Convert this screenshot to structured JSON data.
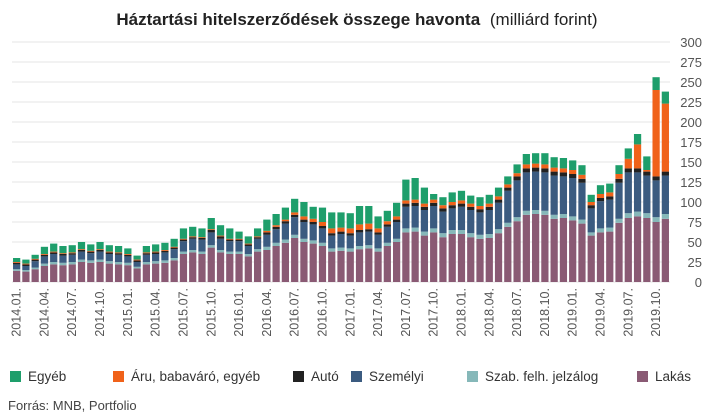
{
  "title_bold": "Háztartási hitelszerződések összege havonta",
  "title_rest": "(milliárd forint)",
  "source": "Forrás: MNB, Portfolio",
  "colors": {
    "Lakás": "#8a5a74",
    "Szab. felh. jelzálog": "#86b8b9",
    "Személyi": "#3b5b80",
    "Autó": "#222222",
    "Áru, babaváró, egyéb": "#f0621a",
    "Egyéb": "#1e9e6b",
    "grid": "#e6e6e6",
    "axis_text": "#555555"
  },
  "chart_data": {
    "type": "bar",
    "stacked": true,
    "ylim": [
      0,
      300
    ],
    "yticks": [
      0,
      25,
      50,
      75,
      100,
      125,
      150,
      175,
      200,
      225,
      250,
      275,
      300
    ],
    "y_axis_position": "right",
    "grid": true,
    "legend_position": "bottom",
    "xtick_labels": [
      "2014.01.",
      "2014.04.",
      "2014.07.",
      "2014.10.",
      "2015.01.",
      "2015.04.",
      "2015.07.",
      "2015.10.",
      "2016.01.",
      "2016.04.",
      "2016.07.",
      "2016.10.",
      "2017.01.",
      "2017.04.",
      "2017.07.",
      "2017.10.",
      "2018.01.",
      "2018.04.",
      "2018.07.",
      "2018.10.",
      "2019.01.",
      "2019.04.",
      "2019.07.",
      "2019.10."
    ],
    "xtick_every": 3,
    "categories": [
      "2014.01.",
      "2014.02.",
      "2014.03.",
      "2014.04.",
      "2014.05.",
      "2014.06.",
      "2014.07.",
      "2014.08.",
      "2014.09.",
      "2014.10.",
      "2014.11.",
      "2014.12.",
      "2015.01.",
      "2015.02.",
      "2015.03.",
      "2015.04.",
      "2015.05.",
      "2015.06.",
      "2015.07.",
      "2015.08.",
      "2015.09.",
      "2015.10.",
      "2015.11.",
      "2015.12.",
      "2016.01.",
      "2016.02.",
      "2016.03.",
      "2016.04.",
      "2016.05.",
      "2016.06.",
      "2016.07.",
      "2016.08.",
      "2016.09.",
      "2016.10.",
      "2016.11.",
      "2016.12.",
      "2017.01.",
      "2017.02.",
      "2017.03.",
      "2017.04.",
      "2017.05.",
      "2017.06.",
      "2017.07.",
      "2017.08.",
      "2017.09.",
      "2017.10.",
      "2017.11.",
      "2017.12.",
      "2018.01.",
      "2018.02.",
      "2018.03.",
      "2018.04.",
      "2018.05.",
      "2018.06.",
      "2018.07.",
      "2018.08.",
      "2018.09.",
      "2018.10.",
      "2018.11.",
      "2018.12.",
      "2019.01.",
      "2019.02.",
      "2019.03.",
      "2019.04.",
      "2019.05.",
      "2019.06.",
      "2019.07.",
      "2019.08.",
      "2019.09.",
      "2019.10.",
      "2019.11."
    ],
    "series": [
      {
        "name": "Lakás",
        "values": [
          14,
          13,
          16,
          20,
          22,
          21,
          22,
          25,
          24,
          25,
          23,
          22,
          21,
          17,
          22,
          23,
          24,
          27,
          35,
          37,
          35,
          43,
          37,
          35,
          35,
          32,
          38,
          40,
          45,
          49,
          55,
          50,
          48,
          45,
          38,
          39,
          38,
          41,
          42,
          38,
          45,
          50,
          62,
          63,
          58,
          62,
          56,
          60,
          60,
          56,
          54,
          55,
          61,
          69,
          76,
          84,
          85,
          84,
          79,
          80,
          77,
          73,
          58,
          62,
          63,
          74,
          80,
          82,
          80,
          75,
          79
        ]
      },
      {
        "name": "Szab. felh. jelzálog",
        "values": [
          2,
          2,
          2,
          3,
          3,
          3,
          3,
          3,
          3,
          3,
          3,
          3,
          3,
          2,
          3,
          3,
          3,
          3,
          3,
          3,
          3,
          3,
          3,
          3,
          3,
          3,
          3,
          4,
          4,
          4,
          4,
          4,
          4,
          4,
          4,
          4,
          4,
          4,
          4,
          4,
          4,
          4,
          5,
          5,
          5,
          5,
          5,
          5,
          5,
          5,
          5,
          5,
          5,
          5,
          5,
          5,
          5,
          5,
          5,
          5,
          5,
          5,
          4,
          5,
          5,
          5,
          6,
          6,
          6,
          6,
          6
        ]
      },
      {
        "name": "Személyi",
        "values": [
          6,
          5,
          8,
          9,
          10,
          9,
          9,
          10,
          9,
          10,
          9,
          9,
          8,
          6,
          9,
          9,
          10,
          11,
          13,
          14,
          15,
          16,
          14,
          13,
          13,
          10,
          13,
          15,
          17,
          20,
          22,
          21,
          20,
          18,
          16,
          17,
          16,
          17,
          17,
          17,
          20,
          21,
          27,
          27,
          27,
          28,
          27,
          27,
          29,
          29,
          28,
          30,
          33,
          40,
          46,
          48,
          48,
          48,
          49,
          47,
          48,
          46,
          30,
          34,
          35,
          45,
          51,
          49,
          47,
          46,
          48
        ]
      },
      {
        "name": "Autó",
        "values": [
          2,
          2,
          2,
          2,
          2,
          2,
          2,
          2,
          2,
          2,
          2,
          2,
          2,
          2,
          2,
          2,
          2,
          2,
          2,
          2,
          2,
          3,
          3,
          2,
          2,
          2,
          2,
          3,
          3,
          3,
          3,
          3,
          3,
          3,
          3,
          3,
          3,
          3,
          3,
          3,
          3,
          3,
          4,
          4,
          4,
          4,
          4,
          4,
          4,
          4,
          4,
          4,
          4,
          4,
          5,
          5,
          5,
          5,
          5,
          5,
          5,
          5,
          4,
          4,
          4,
          5,
          5,
          5,
          5,
          5,
          5
        ]
      },
      {
        "name": "Áru, babaváró, egyéb",
        "values": [
          1,
          1,
          1,
          1,
          1,
          1,
          1,
          1,
          1,
          1,
          1,
          1,
          1,
          1,
          1,
          1,
          1,
          1,
          1,
          1,
          1,
          1,
          1,
          1,
          1,
          1,
          1,
          2,
          2,
          2,
          3,
          4,
          4,
          5,
          6,
          5,
          6,
          7,
          7,
          5,
          4,
          4,
          4,
          4,
          4,
          4,
          4,
          4,
          4,
          4,
          4,
          4,
          4,
          4,
          4,
          5,
          5,
          5,
          5,
          5,
          5,
          5,
          4,
          5,
          5,
          6,
          12,
          30,
          2,
          108,
          85
        ]
      },
      {
        "name": "Egyéb",
        "values": [
          5,
          5,
          5,
          9,
          10,
          9,
          9,
          9,
          8,
          9,
          8,
          8,
          7,
          5,
          8,
          9,
          9,
          10,
          13,
          12,
          11,
          14,
          13,
          13,
          9,
          9,
          10,
          14,
          14,
          15,
          17,
          18,
          15,
          18,
          20,
          19,
          19,
          23,
          22,
          15,
          13,
          17,
          26,
          27,
          20,
          7,
          10,
          12,
          12,
          10,
          11,
          11,
          11,
          10,
          11,
          13,
          13,
          14,
          13,
          13,
          12,
          12,
          9,
          11,
          11,
          11,
          13,
          13,
          17,
          16,
          15
        ]
      }
    ]
  }
}
